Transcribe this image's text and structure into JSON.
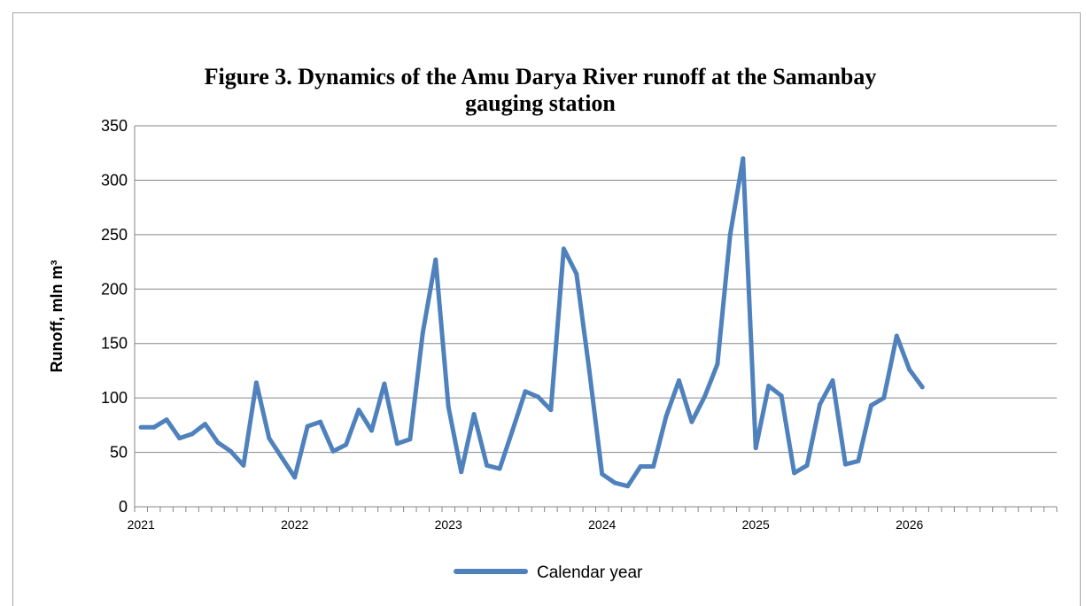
{
  "chart_data": {
    "type": "line",
    "title": "Figure 3. Dynamics of the Amu Darya River runoff at the Samanbay\ngauging station",
    "ylabel": "Runoff, mln m³",
    "xlabel": "",
    "ylim": [
      0,
      350
    ],
    "yticks": [
      0,
      50,
      100,
      150,
      200,
      250,
      300,
      350
    ],
    "xtick_labels": [
      "2021",
      "2022",
      "2023",
      "2024",
      "2025",
      "2026"
    ],
    "months_per_year": 12,
    "axis_months": 72,
    "grid": "horizontal",
    "legend": "bottom",
    "series": [
      {
        "name": "Calendar year",
        "color": "#4f81bd",
        "values": [
          73,
          73,
          80,
          63,
          67,
          76,
          59,
          51,
          38,
          114,
          63,
          45,
          27,
          74,
          78,
          51,
          57,
          89,
          70,
          113,
          58,
          62,
          160,
          227,
          92,
          32,
          85,
          38,
          35,
          70,
          106,
          101,
          89,
          237,
          214,
          125,
          30,
          22,
          19,
          37,
          37,
          83,
          116,
          78,
          101,
          131,
          250,
          320,
          54,
          111,
          102,
          31,
          38,
          94,
          116,
          39,
          42,
          93,
          100,
          157,
          126,
          110
        ]
      }
    ]
  }
}
